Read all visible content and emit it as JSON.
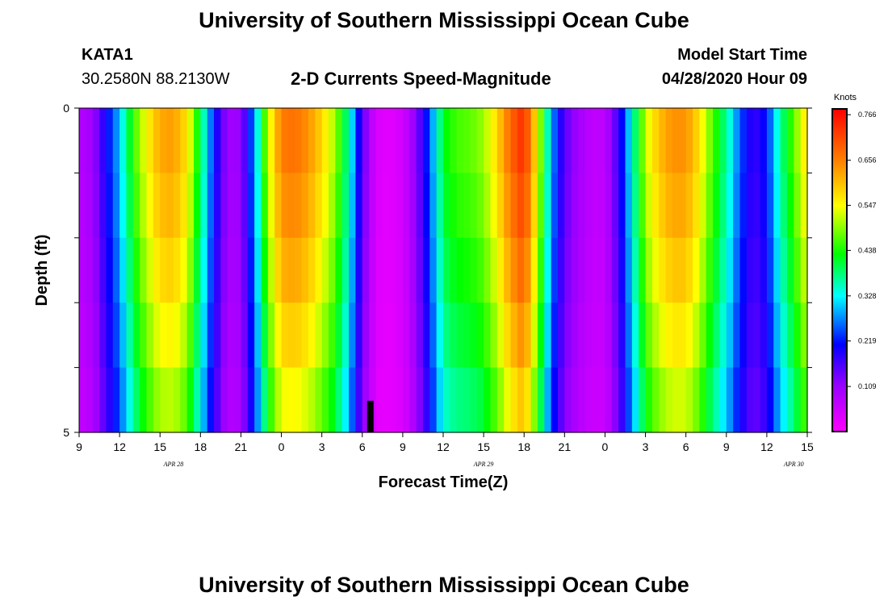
{
  "page": {
    "title": "University of Southern Mississippi Ocean Cube",
    "station": "KATA1",
    "coords": "30.2580N 88.2130W",
    "subtitle": "2-D Currents Speed-Magnitude",
    "model_start_label": "Model Start Time",
    "model_start_value": "04/28/2020 Hour 09",
    "footer_title": "University of Southern Mississippi Ocean Cube"
  },
  "chart_data": {
    "type": "heatmap",
    "title": "2-D Currents Speed-Magnitude",
    "xlabel": "Forecast Time(Z)",
    "ylabel": "Depth (ft)",
    "y_range": [
      0,
      5
    ],
    "y_tick_labels": [
      "0",
      "5"
    ],
    "x_tick_labels": [
      "9",
      "12",
      "15",
      "18",
      "21",
      "0",
      "3",
      "6",
      "9",
      "12",
      "15",
      "18",
      "21",
      "0",
      "3",
      "6",
      "9",
      "12",
      "15"
    ],
    "date_labels": [
      {
        "label": "APR 28",
        "at_hour": 16
      },
      {
        "label": "APR 29",
        "at_hour": 39
      },
      {
        "label": "APR 30",
        "at_hour": 62
      }
    ],
    "x_range_hours": [
      9,
      63
    ],
    "colorbar": {
      "unit": "Knots",
      "min": 0,
      "max": 0.78,
      "ticks": [
        "0.766",
        "0.656",
        "0.547",
        "0.438",
        "0.328",
        "0.219",
        "0.109"
      ],
      "tick_values": [
        0.766,
        0.656,
        0.547,
        0.438,
        0.328,
        0.219,
        0.109
      ]
    },
    "depth_rows": [
      "0-1 ft",
      "1-2 ft",
      "2-3 ft",
      "3-4 ft",
      "4-5 ft"
    ],
    "speed_profile": [
      [
        9,
        0.08
      ],
      [
        10,
        0.1
      ],
      [
        11,
        0.2
      ],
      [
        12,
        0.3
      ],
      [
        13,
        0.45
      ],
      [
        14,
        0.55
      ],
      [
        15,
        0.62
      ],
      [
        16,
        0.63
      ],
      [
        17,
        0.57
      ],
      [
        18,
        0.4
      ],
      [
        19,
        0.22
      ],
      [
        20,
        0.1
      ],
      [
        21,
        0.11
      ],
      [
        22,
        0.28
      ],
      [
        23,
        0.52
      ],
      [
        24,
        0.66
      ],
      [
        25,
        0.67
      ],
      [
        26,
        0.64
      ],
      [
        27,
        0.58
      ],
      [
        28,
        0.5
      ],
      [
        29,
        0.36
      ],
      [
        30,
        0.15
      ],
      [
        31,
        0.04
      ],
      [
        32,
        0.03
      ],
      [
        33,
        0.05
      ],
      [
        34,
        0.12
      ],
      [
        35,
        0.25
      ],
      [
        36,
        0.42
      ],
      [
        37,
        0.46
      ],
      [
        38,
        0.47
      ],
      [
        39,
        0.5
      ],
      [
        40,
        0.58
      ],
      [
        41,
        0.68
      ],
      [
        42,
        0.74
      ],
      [
        43,
        0.55
      ],
      [
        44,
        0.29
      ],
      [
        45,
        0.15
      ],
      [
        46,
        0.1
      ],
      [
        47,
        0.07
      ],
      [
        48,
        0.07
      ],
      [
        49,
        0.17
      ],
      [
        50,
        0.34
      ],
      [
        51,
        0.52
      ],
      [
        52,
        0.6
      ],
      [
        53,
        0.64
      ],
      [
        54,
        0.64
      ],
      [
        55,
        0.57
      ],
      [
        56,
        0.46
      ],
      [
        57,
        0.37
      ],
      [
        58,
        0.25
      ],
      [
        59,
        0.17
      ],
      [
        60,
        0.22
      ],
      [
        61,
        0.37
      ],
      [
        62,
        0.47
      ],
      [
        63,
        0.58
      ]
    ],
    "depth_factors": [
      1.0,
      0.97,
      0.93,
      0.88,
      0.82
    ],
    "bar_marker": {
      "hour": 30,
      "depth_from": 4.5,
      "depth_to": 5
    }
  }
}
